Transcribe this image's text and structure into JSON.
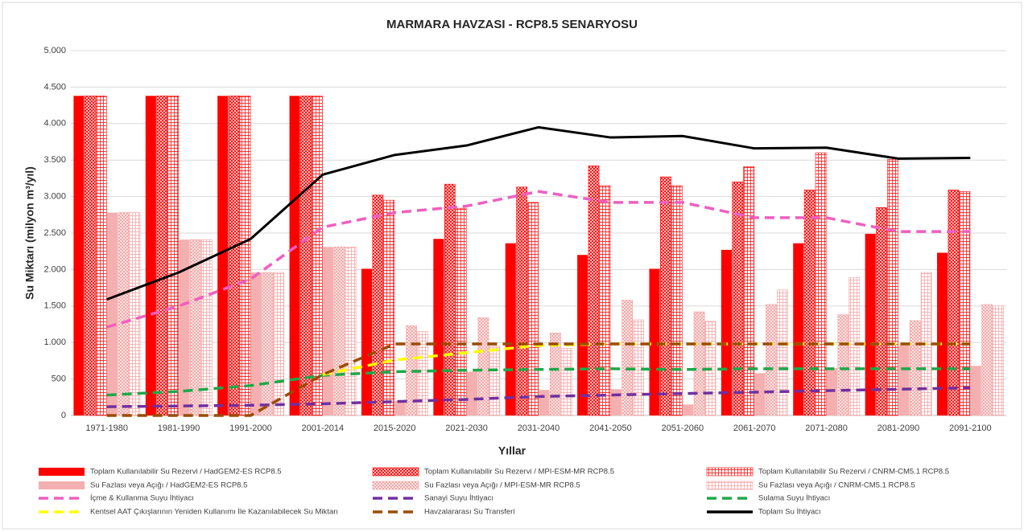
{
  "chart_data": {
    "type": "bar-line",
    "title": "MARMARA HAVZASI - RCP8.5 SENARYOSU",
    "x_label": "Yıllar",
    "y_label": "Su Miktarı (milyon m³/yıl)",
    "categories": [
      "1971-1980",
      "1981-1990",
      "1991-2000",
      "2001-2014",
      "2015-2020",
      "2021-2030",
      "2031-2040",
      "2041-2050",
      "2051-2060",
      "2061-2070",
      "2071-2080",
      "2081-2090",
      "2091-2100"
    ],
    "ylim": [
      0,
      5000
    ],
    "yticks": [
      0,
      500,
      {
        "value": 1000,
        "label": "1.000"
      },
      {
        "value": 1500,
        "label": "1.500"
      },
      {
        "value": 2000,
        "label": "2.000"
      },
      {
        "value": 2500,
        "label": "2.500"
      },
      {
        "value": 3000,
        "label": "3.000"
      },
      {
        "value": 3500,
        "label": "3.500"
      },
      {
        "value": 4000,
        "label": "4.000"
      },
      {
        "value": 4500,
        "label": "4.500"
      },
      {
        "value": 5000,
        "label": "5.000"
      }
    ],
    "grid": true,
    "series": [
      {
        "name": "Toplam Kullanılabilir Su Rezervi / HadGEM2-ES RCP8.5",
        "kind": "bar",
        "pattern": "solid",
        "color": "#ff0000",
        "values": [
          4380,
          4380,
          4380,
          4380,
          2010,
          2420,
          2360,
          2200,
          2010,
          2270,
          2360,
          2490,
          2230
        ]
      },
      {
        "name": "Toplam Kullanılabilir Su Rezervi / MPI-ESM-MR RCP8.5",
        "kind": "bar",
        "pattern": "crosshatch",
        "color": "#ff0000",
        "values": [
          4380,
          4380,
          4380,
          4380,
          3020,
          3170,
          3130,
          3420,
          3270,
          3200,
          3090,
          2850,
          3090
        ]
      },
      {
        "name": "Toplam Kullanılabilir Su Rezervi / CNRM-CM5.1 RCP8.5",
        "kind": "bar",
        "pattern": "grid",
        "color": "#ff0000",
        "values": [
          4380,
          4380,
          4380,
          4380,
          2950,
          2840,
          2920,
          3150,
          3150,
          3410,
          3600,
          3510,
          3070
        ]
      },
      {
        "name": "Su Fazlası veya Açığı / HadGEM2-ES RCP8.5",
        "kind": "bar",
        "pattern": "solid",
        "color": "#f4b0b0",
        "values": [
          2780,
          2410,
          1960,
          2310,
          200,
          600,
          350,
          360,
          150,
          580,
          650,
          960,
          680
        ]
      },
      {
        "name": "Su Fazlası veya Açığı / MPI-ESM-MR RCP8.5",
        "kind": "bar",
        "pattern": "crosshatch",
        "color": "#f4a0a0",
        "values": [
          2780,
          2410,
          1960,
          2310,
          1230,
          1340,
          1130,
          1580,
          1420,
          1520,
          1380,
          1300,
          1520
        ]
      },
      {
        "name": "Su Fazlası veya Açığı / CNRM-CM5.1 RCP8.5",
        "kind": "bar",
        "pattern": "grid",
        "color": "#f4a0a0",
        "values": [
          2780,
          2410,
          1960,
          2310,
          1150,
          950,
          920,
          1310,
          1290,
          1720,
          1890,
          1960,
          1500
        ]
      },
      {
        "name": "İçme & Kullanma Suyu İhtiyacı",
        "kind": "line",
        "dashed": true,
        "color": "#ee5fc0",
        "values": [
          1210,
          1500,
          1870,
          2580,
          2780,
          2870,
          3070,
          2920,
          2920,
          2710,
          2710,
          2520,
          2520
        ]
      },
      {
        "name": "Sanayi Suyu İhtiyacı",
        "kind": "line",
        "dashed": true,
        "color": "#7030a0",
        "values": [
          120,
          130,
          140,
          160,
          190,
          220,
          260,
          280,
          300,
          320,
          340,
          360,
          380
        ]
      },
      {
        "name": "Sulama Suyu İhtiyacı",
        "kind": "line",
        "dashed": true,
        "color": "#1ea84a",
        "values": [
          280,
          330,
          410,
          550,
          600,
          620,
          630,
          640,
          630,
          640,
          640,
          640,
          640
        ]
      },
      {
        "name": "Kentsel AAT Çıkışlarının Yeniden Kullanımı İle Kazanılabilecek Su Miktarı",
        "kind": "line",
        "dashed": true,
        "color": "#ffff00",
        "values": [
          null,
          null,
          null,
          560,
          760,
          860,
          960,
          980,
          980,
          980,
          980,
          980,
          980
        ]
      },
      {
        "name": "Havzalararası Su Transferi",
        "kind": "line",
        "dashed": true,
        "color": "#994c00",
        "values": [
          0,
          0,
          0,
          560,
          980,
          980,
          980,
          980,
          980,
          980,
          980,
          980,
          980
        ]
      },
      {
        "name": "Toplam Su İhtiyacı",
        "kind": "line",
        "dashed": false,
        "color": "#000000",
        "values": [
          1590,
          1960,
          2420,
          3300,
          3570,
          3700,
          3950,
          3810,
          3830,
          3660,
          3670,
          3520,
          3530
        ]
      }
    ]
  }
}
